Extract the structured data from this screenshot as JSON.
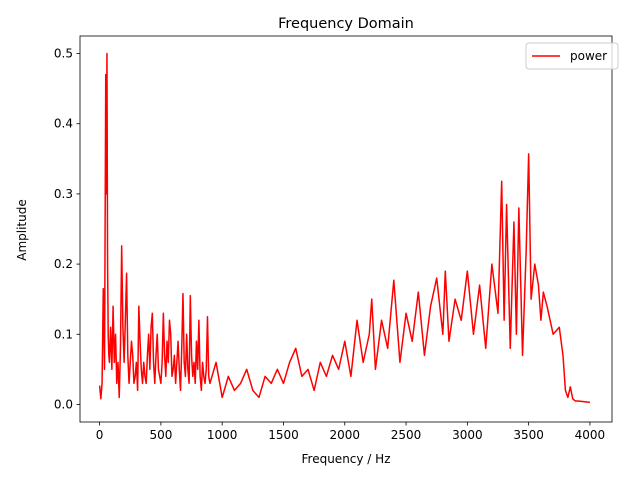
{
  "chart_data": {
    "type": "line",
    "title": "Frequency Domain",
    "xlabel": "Frequency / Hz",
    "ylabel": "Amplitude",
    "xlim": [
      -160,
      4180
    ],
    "ylim": [
      -0.025,
      0.525
    ],
    "xticks": [
      0,
      500,
      1000,
      1500,
      2000,
      2500,
      3000,
      3500,
      4000
    ],
    "xtick_labels": [
      "0",
      "500",
      "1000",
      "1500",
      "2000",
      "2500",
      "3000",
      "3500",
      "4000"
    ],
    "yticks": [
      0.0,
      0.1,
      0.2,
      0.3,
      0.4,
      0.5
    ],
    "ytick_labels": [
      "0.0",
      "0.1",
      "0.2",
      "0.3",
      "0.4",
      "0.5"
    ],
    "grid": false,
    "legend": {
      "placement": "top-right",
      "entries": [
        "power"
      ]
    },
    "series": [
      {
        "name": "power",
        "color": "#ff0000",
        "x": [
          0,
          10,
          20,
          30,
          40,
          50,
          55,
          60,
          65,
          70,
          75,
          80,
          90,
          100,
          110,
          120,
          130,
          140,
          150,
          160,
          170,
          180,
          190,
          200,
          210,
          220,
          230,
          240,
          250,
          260,
          270,
          280,
          290,
          300,
          310,
          320,
          330,
          340,
          350,
          360,
          370,
          380,
          390,
          400,
          410,
          420,
          430,
          440,
          450,
          460,
          470,
          480,
          490,
          500,
          510,
          520,
          530,
          540,
          550,
          560,
          570,
          580,
          590,
          600,
          610,
          620,
          630,
          640,
          650,
          660,
          670,
          680,
          690,
          700,
          710,
          720,
          730,
          740,
          750,
          760,
          770,
          780,
          790,
          800,
          810,
          820,
          830,
          840,
          850,
          860,
          870,
          880,
          890,
          900,
          950,
          1000,
          1050,
          1100,
          1150,
          1200,
          1250,
          1300,
          1350,
          1400,
          1450,
          1500,
          1550,
          1600,
          1650,
          1700,
          1750,
          1800,
          1850,
          1900,
          1950,
          2000,
          2050,
          2100,
          2150,
          2200,
          2220,
          2250,
          2300,
          2350,
          2400,
          2450,
          2500,
          2550,
          2600,
          2650,
          2700,
          2750,
          2800,
          2820,
          2850,
          2900,
          2950,
          3000,
          3050,
          3100,
          3150,
          3200,
          3250,
          3280,
          3300,
          3320,
          3350,
          3380,
          3400,
          3420,
          3450,
          3480,
          3500,
          3520,
          3550,
          3580,
          3600,
          3620,
          3650,
          3700,
          3750,
          3780,
          3800,
          3820,
          3840,
          3860,
          3880,
          3900,
          3950,
          4000
        ],
        "y": [
          0.027,
          0.008,
          0.03,
          0.165,
          0.05,
          0.47,
          0.3,
          0.5,
          0.2,
          0.1,
          0.07,
          0.06,
          0.11,
          0.05,
          0.14,
          0.06,
          0.1,
          0.03,
          0.06,
          0.01,
          0.08,
          0.226,
          0.11,
          0.06,
          0.12,
          0.187,
          0.07,
          0.03,
          0.06,
          0.09,
          0.07,
          0.03,
          0.04,
          0.06,
          0.02,
          0.14,
          0.09,
          0.05,
          0.03,
          0.06,
          0.04,
          0.03,
          0.07,
          0.1,
          0.05,
          0.11,
          0.13,
          0.06,
          0.03,
          0.07,
          0.1,
          0.05,
          0.04,
          0.03,
          0.06,
          0.13,
          0.07,
          0.04,
          0.09,
          0.06,
          0.12,
          0.1,
          0.04,
          0.05,
          0.07,
          0.03,
          0.06,
          0.09,
          0.05,
          0.02,
          0.08,
          0.158,
          0.06,
          0.04,
          0.1,
          0.05,
          0.03,
          0.155,
          0.07,
          0.04,
          0.06,
          0.03,
          0.09,
          0.05,
          0.12,
          0.04,
          0.02,
          0.06,
          0.04,
          0.03,
          0.05,
          0.125,
          0.04,
          0.03,
          0.06,
          0.01,
          0.04,
          0.02,
          0.03,
          0.05,
          0.02,
          0.01,
          0.04,
          0.03,
          0.05,
          0.03,
          0.06,
          0.08,
          0.04,
          0.05,
          0.02,
          0.06,
          0.04,
          0.07,
          0.05,
          0.09,
          0.04,
          0.12,
          0.06,
          0.1,
          0.15,
          0.05,
          0.12,
          0.08,
          0.177,
          0.06,
          0.13,
          0.09,
          0.16,
          0.07,
          0.14,
          0.18,
          0.1,
          0.19,
          0.09,
          0.15,
          0.12,
          0.19,
          0.1,
          0.17,
          0.08,
          0.2,
          0.13,
          0.318,
          0.12,
          0.285,
          0.08,
          0.26,
          0.1,
          0.28,
          0.07,
          0.22,
          0.357,
          0.15,
          0.2,
          0.17,
          0.12,
          0.16,
          0.14,
          0.1,
          0.11,
          0.07,
          0.02,
          0.01,
          0.025,
          0.008,
          0.005,
          0.005,
          0.004,
          0.003
        ]
      }
    ]
  }
}
